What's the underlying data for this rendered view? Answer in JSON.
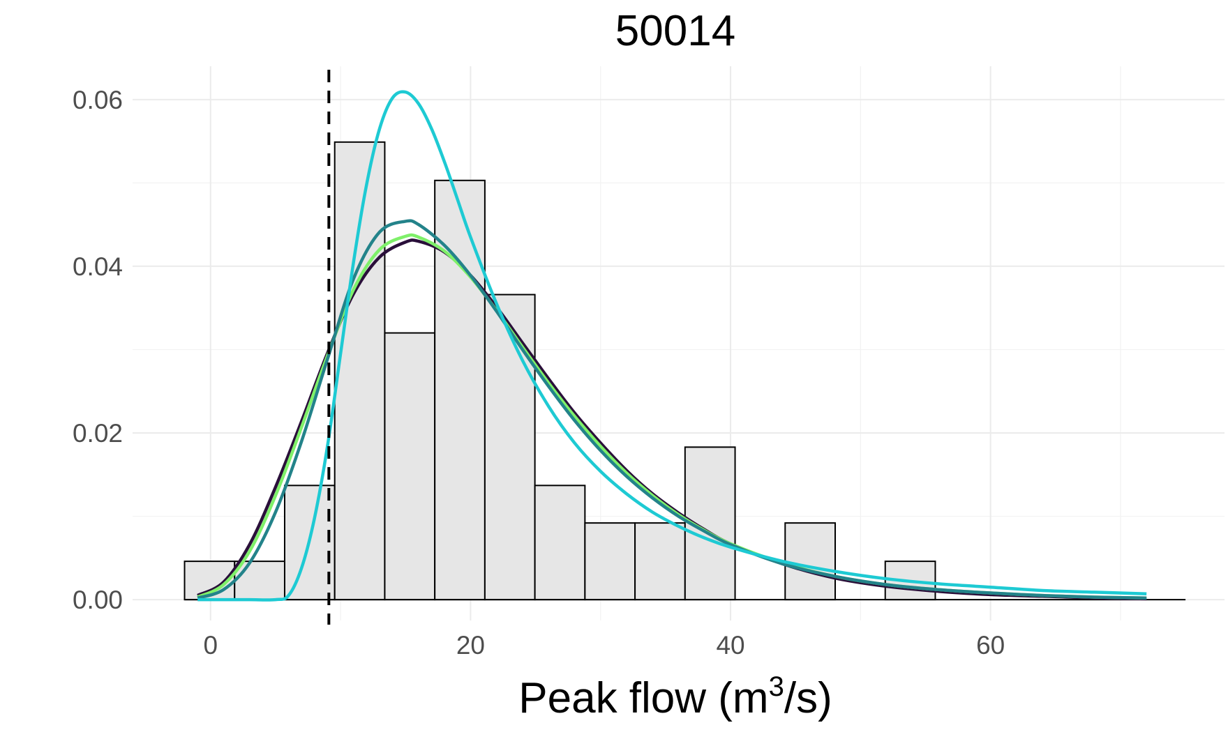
{
  "chart_data": {
    "type": "bar",
    "title": "50014",
    "xlabel": "Peak flow (m",
    "xlabel_sup": "3",
    "xlabel_tail": "/s)",
    "ylabel": "",
    "xlim": [
      -6,
      78
    ],
    "ylim": [
      -0.0025,
      0.064
    ],
    "x_ticks": [
      0,
      20,
      40,
      60
    ],
    "x_tick_labels": [
      "0",
      "20",
      "40",
      "60"
    ],
    "y_ticks": [
      0.0,
      0.02,
      0.04,
      0.06
    ],
    "y_tick_labels": [
      "0.00",
      "0.02",
      "0.04",
      "0.06"
    ],
    "grid": true,
    "histogram": {
      "fill": "#e6e6e6",
      "stroke": "#000000",
      "bins": [
        {
          "x0": -2.0,
          "x1": 1.85,
          "density": 0.0046
        },
        {
          "x0": 1.85,
          "x1": 5.7,
          "density": 0.0046
        },
        {
          "x0": 5.7,
          "x1": 9.55,
          "density": 0.0137
        },
        {
          "x0": 9.55,
          "x1": 13.4,
          "density": 0.0549
        },
        {
          "x0": 13.4,
          "x1": 17.25,
          "density": 0.032
        },
        {
          "x0": 17.25,
          "x1": 21.1,
          "density": 0.0503
        },
        {
          "x0": 21.1,
          "x1": 24.95,
          "density": 0.0366
        },
        {
          "x0": 24.95,
          "x1": 28.8,
          "density": 0.0137
        },
        {
          "x0": 28.8,
          "x1": 32.65,
          "density": 0.0092
        },
        {
          "x0": 32.65,
          "x1": 36.5,
          "density": 0.0092
        },
        {
          "x0": 36.5,
          "x1": 40.35,
          "density": 0.0183
        },
        {
          "x0": 40.35,
          "x1": 44.2,
          "density": 0.0
        },
        {
          "x0": 44.2,
          "x1": 48.05,
          "density": 0.0092
        },
        {
          "x0": 48.05,
          "x1": 51.9,
          "density": 0.0
        },
        {
          "x0": 51.9,
          "x1": 55.75,
          "density": 0.0046
        },
        {
          "x0": 55.75,
          "x1": 59.6,
          "density": 0.0
        },
        {
          "x0": 59.6,
          "x1": 63.45,
          "density": 0.0
        },
        {
          "x0": 63.45,
          "x1": 67.3,
          "density": 0.0
        },
        {
          "x0": 67.3,
          "x1": 71.15,
          "density": 0.0
        },
        {
          "x0": 71.15,
          "x1": 75.0,
          "density": 0.0
        }
      ]
    },
    "threshold_line": {
      "x": 9.1,
      "color": "#000000",
      "style": "dashed"
    },
    "series": [
      {
        "color": "#2a0f3a",
        "x": [
          -1,
          1,
          3,
          5,
          7,
          9,
          11,
          13,
          15,
          16,
          18,
          20,
          22,
          24,
          26,
          28,
          30,
          32,
          34,
          36,
          38,
          40,
          44,
          48,
          52,
          56,
          60,
          64,
          68,
          72
        ],
        "y": [
          0.0005,
          0.0021,
          0.0066,
          0.0135,
          0.0214,
          0.0296,
          0.0367,
          0.0411,
          0.0429,
          0.043,
          0.0417,
          0.0389,
          0.0351,
          0.0308,
          0.0265,
          0.0224,
          0.0188,
          0.0155,
          0.0127,
          0.0104,
          0.0084,
          0.0067,
          0.0043,
          0.0026,
          0.0016,
          0.001,
          0.0006,
          0.0004,
          0.0002,
          0.0001
        ]
      },
      {
        "color": "#7ff06a",
        "x": [
          -1,
          1,
          3,
          5,
          7,
          9,
          11,
          13,
          15,
          16,
          18,
          20,
          22,
          24,
          26,
          28,
          30,
          32,
          34,
          36,
          38,
          40,
          44,
          48,
          52,
          56,
          60,
          64,
          68,
          72
        ],
        "y": [
          0.0003,
          0.0018,
          0.0058,
          0.0125,
          0.0207,
          0.0293,
          0.0372,
          0.042,
          0.0436,
          0.0435,
          0.0418,
          0.0387,
          0.0347,
          0.0303,
          0.026,
          0.022,
          0.0184,
          0.0152,
          0.0125,
          0.0102,
          0.0083,
          0.0067,
          0.0044,
          0.0028,
          0.0018,
          0.0012,
          0.0008,
          0.0005,
          0.0003,
          0.0002
        ]
      },
      {
        "color": "#23838a",
        "x": [
          -1,
          1,
          3,
          5,
          7,
          9,
          11,
          13,
          15,
          16,
          18,
          20,
          22,
          24,
          26,
          28,
          30,
          32,
          34,
          36,
          38,
          40,
          44,
          48,
          52,
          56,
          60,
          64,
          68,
          72
        ],
        "y": [
          0.0002,
          0.0012,
          0.0044,
          0.0105,
          0.019,
          0.0289,
          0.0385,
          0.0441,
          0.0454,
          0.045,
          0.0425,
          0.0389,
          0.0346,
          0.03,
          0.0256,
          0.0215,
          0.0179,
          0.0148,
          0.0122,
          0.01,
          0.0082,
          0.0066,
          0.0043,
          0.0028,
          0.0018,
          0.0012,
          0.0008,
          0.0005,
          0.0003,
          0.0002
        ]
      },
      {
        "color": "#1ecad3",
        "x": [
          -1,
          1,
          3,
          5,
          6,
          7,
          8,
          9,
          10,
          11,
          12,
          13,
          14,
          15,
          16,
          17,
          18,
          19,
          20,
          22,
          24,
          26,
          28,
          30,
          32,
          34,
          36,
          38,
          40,
          44,
          48,
          52,
          56,
          60,
          64,
          68,
          72
        ],
        "y": [
          0.0,
          0.0,
          0.0,
          0.0,
          0.0005,
          0.0038,
          0.0098,
          0.0185,
          0.0295,
          0.0405,
          0.0498,
          0.0565,
          0.0602,
          0.0609,
          0.0595,
          0.0565,
          0.0525,
          0.048,
          0.0435,
          0.0355,
          0.0287,
          0.0232,
          0.0188,
          0.0154,
          0.0127,
          0.0105,
          0.0088,
          0.0074,
          0.0063,
          0.0046,
          0.0034,
          0.0025,
          0.0019,
          0.0015,
          0.0011,
          0.0009,
          0.0007
        ]
      }
    ]
  }
}
